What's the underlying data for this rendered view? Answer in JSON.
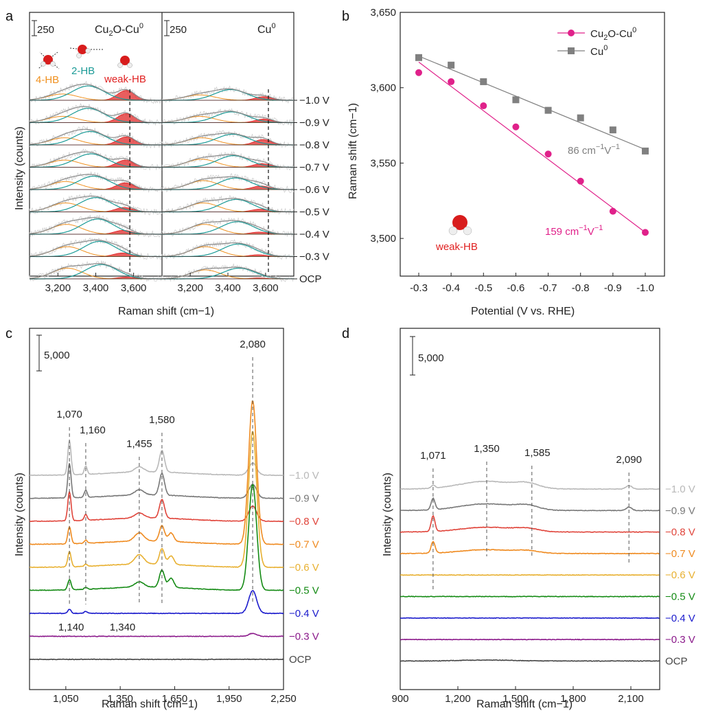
{
  "chart_data": [
    {
      "panel": "a",
      "type": "line",
      "subpanels": [
        {
          "name": "Cu2O-Cu0",
          "title_base": "Cu",
          "title_sub": "2",
          "title_mid": "O-Cu",
          "title_sup": "0",
          "scale_bar": "250"
        },
        {
          "name": "Cu0",
          "title_base": "Cu",
          "title_sup": "0",
          "scale_bar": "250"
        }
      ],
      "xlim": [
        3050,
        3750
      ],
      "xticks": [
        "3,200",
        "3,400",
        "3,600"
      ],
      "xtick_values": [
        3200,
        3400,
        3600
      ],
      "xlabel": "Raman shift (cm−1)",
      "ylabel": "Intensity (counts)",
      "potentials": [
        "−1.0 V",
        "−0.9 V",
        "−0.8 V",
        "−0.7 V",
        "−0.6 V",
        "−0.5 V",
        "−0.4 V",
        "−0.3 V",
        "OCP"
      ],
      "components": [
        {
          "name": "4-HB",
          "label": "4-HB",
          "color": "#f0901e"
        },
        {
          "name": "2-HB",
          "label": "2-HB",
          "color": "#1a9a96"
        },
        {
          "name": "weak-HB",
          "label": "weak-HB",
          "color": "#e02020"
        }
      ],
      "dashed_line_x": [
        3580,
        3615
      ],
      "peak_centers_Cu2O": {
        "4-HB": [
          3225,
          3225,
          3235,
          3235,
          3240,
          3240,
          3245,
          3250,
          3250
        ],
        "2-HB": [
          3360,
          3360,
          3370,
          3375,
          3390,
          3400,
          3410,
          3420,
          3430
        ],
        "weak-HB": [
          3560,
          3560,
          3560,
          3555,
          3555,
          3550,
          3545,
          3540,
          3560
        ],
        "amp_4HB": [
          0.35,
          0.35,
          0.4,
          0.4,
          0.45,
          0.5,
          0.55,
          0.55,
          0.6
        ],
        "amp_2HB": [
          0.8,
          0.8,
          0.75,
          0.75,
          0.75,
          0.8,
          0.85,
          0.85,
          0.8
        ],
        "amp_weak": [
          0.55,
          0.5,
          0.45,
          0.4,
          0.38,
          0.25,
          0.22,
          0.2,
          0.1
        ]
      },
      "peak_centers_Cu": {
        "4-HB": [
          3250,
          3250,
          3260,
          3260,
          3270,
          3270,
          3275,
          3280,
          3280
        ],
        "2-HB": [
          3415,
          3420,
          3425,
          3430,
          3440,
          3445,
          3450,
          3455,
          3460
        ],
        "weak-HB": [
          3590,
          3590,
          3585,
          3580,
          3575,
          3570,
          3565,
          3560,
          3560
        ],
        "amp_4HB": [
          0.3,
          0.35,
          0.4,
          0.45,
          0.5,
          0.5,
          0.55,
          0.55,
          0.5
        ],
        "amp_2HB": [
          0.6,
          0.6,
          0.6,
          0.65,
          0.65,
          0.7,
          0.7,
          0.7,
          0.6
        ],
        "amp_weak": [
          0.2,
          0.2,
          0.3,
          0.2,
          0.2,
          0.15,
          0.12,
          0.1,
          0.05
        ]
      }
    },
    {
      "panel": "b",
      "type": "scatter",
      "xlabel": "Potential (V vs. RHE)",
      "ylabel": "Raman shift (cm−1)",
      "xticks": [
        "-0.3",
        "-0.4",
        "-0.5",
        "-0.6",
        "-0.7",
        "-0.8",
        "-0.9",
        "-1.0"
      ],
      "x": [
        -0.3,
        -0.4,
        -0.5,
        -0.6,
        -0.7,
        -0.8,
        -0.9,
        -1.0
      ],
      "ylim": [
        3475,
        3650
      ],
      "yticks": [
        "3,500",
        "3,550",
        "3,600",
        "3,650"
      ],
      "ytick_values": [
        3500,
        3550,
        3600,
        3650
      ],
      "series": [
        {
          "name": "Cu2O-Cu0",
          "legend_base": "Cu",
          "legend_sub": "2",
          "legend_mid": "O-Cu",
          "legend_sup": "0",
          "color": "#e0218a",
          "marker": "circle",
          "values": [
            3610,
            3604,
            3588,
            3574,
            3556,
            3538,
            3518,
            3504
          ],
          "fit": [
            3617,
            3504
          ],
          "slope_label_num": "159 cm",
          "slope_label_sup1": "−1",
          "slope_label_mid": "V",
          "slope_label_sup2": "−1"
        },
        {
          "name": "Cu0",
          "legend_base": "Cu",
          "legend_sup": "0",
          "color": "#808080",
          "marker": "square",
          "values": [
            3620,
            3615,
            3604,
            3592,
            3585,
            3580,
            3572,
            3558
          ],
          "fit": [
            3621,
            3559
          ],
          "slope_label_num": "86 cm",
          "slope_label_sup1": "−1",
          "slope_label_mid": "V",
          "slope_label_sup2": "−1"
        }
      ],
      "molecule_label": "weak-HB"
    },
    {
      "panel": "c",
      "type": "line",
      "xlabel": "Raman shift (cm−1)",
      "ylabel": "Intensity (counts)",
      "xlim": [
        850,
        2250
      ],
      "xticks": [
        "1,050",
        "1,350",
        "1,650",
        "1,950",
        "2,250"
      ],
      "xtick_values": [
        1050,
        1350,
        1650,
        1950,
        2250
      ],
      "scale_bar": "5,000",
      "series_labels": [
        "−1.0 V",
        "−0.9 V",
        "−0.8 V",
        "−0.7 V",
        "−0.6 V",
        "−0.5 V",
        "−0.4 V",
        "−0.3 V",
        "OCP"
      ],
      "series_colors": [
        "#b8b8b8",
        "#777777",
        "#e0443a",
        "#ef8a1f",
        "#e8b030",
        "#138a13",
        "#1a1acc",
        "#8a188a",
        "#444444"
      ],
      "annotations_top": [
        "1,070",
        "1,160",
        "1,455",
        "1,580",
        "2,080"
      ],
      "annotation_top_values": [
        1070,
        1160,
        1455,
        1580,
        2080
      ],
      "annotations_bottom": [
        "1,140",
        "1,340"
      ],
      "annotation_bottom_values": [
        1140,
        1340
      ],
      "peak_1070": [
        1.0,
        1.0,
        0.85,
        0.5,
        0.45,
        0.3,
        0.12,
        0.0,
        0.0
      ],
      "peak_1160": [
        0.4,
        0.35,
        0.3,
        0.15,
        0.1,
        0.1,
        0.1,
        0.0,
        0.0
      ],
      "peak_1455": [
        0.25,
        0.25,
        0.25,
        0.4,
        0.45,
        0.25,
        0.0,
        0.0,
        0.0
      ],
      "peak_1580": [
        0.7,
        0.7,
        0.6,
        0.5,
        0.5,
        0.55,
        0.0,
        0.0,
        0.0
      ],
      "peak_2080": [
        0.8,
        0.9,
        1.0,
        9.5,
        9.0,
        7.0,
        1.5,
        0.2,
        0.0
      ]
    },
    {
      "panel": "d",
      "type": "line",
      "xlabel": "Raman shift (cm−1)",
      "ylabel": "Intensity (counts)",
      "xlim": [
        900,
        2250
      ],
      "xticks": [
        "900",
        "1,200",
        "1,500",
        "1,800",
        "2,100"
      ],
      "xtick_values": [
        900,
        1200,
        1500,
        1800,
        2100
      ],
      "scale_bar": "5,000",
      "series_labels": [
        "−1.0 V",
        "−0.9 V",
        "−0.8 V",
        "−0.7 V",
        "−0.6 V",
        "−0.5 V",
        "−0.4 V",
        "−0.3 V",
        "OCP"
      ],
      "series_colors": [
        "#b8b8b8",
        "#777777",
        "#e0443a",
        "#ef8a1f",
        "#e8b030",
        "#138a13",
        "#1a1acc",
        "#8a188a",
        "#444444"
      ],
      "annotations_top": [
        "1,071",
        "1,350",
        "1,585",
        "2,090"
      ],
      "annotation_top_values": [
        1071,
        1350,
        1585,
        2090
      ],
      "peak_1071": [
        0.15,
        0.6,
        0.8,
        0.6,
        0.0,
        0.0,
        0.0,
        0.0,
        0.0
      ],
      "broad_1350": [
        0.8,
        0.7,
        0.5,
        0.4,
        0.0,
        0.0,
        0.0,
        0.0,
        0.1
      ]
    }
  ],
  "panel_letters": [
    "a",
    "b",
    "c",
    "d"
  ]
}
